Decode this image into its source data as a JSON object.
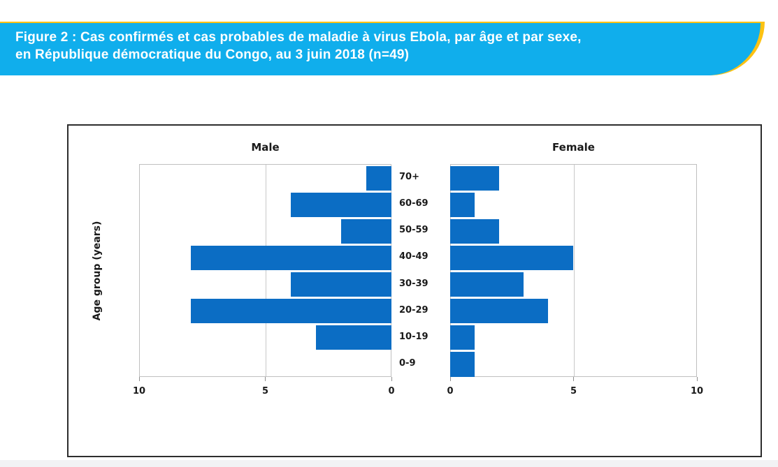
{
  "banner": {
    "title_line1": "Figure 2 : Cas confirmés et cas probables de maladie à virus Ebola, par âge et par sexe,",
    "title_line2": "en République démocratique du Congo, au 3 juin 2018 (n=49)",
    "bg_color": "#10aeec",
    "accent_color": "#fdc212",
    "text_color": "#ffffff"
  },
  "page": {
    "background": "#ffffff",
    "footer_strip_color": "#f2f2f4"
  },
  "chart_data": {
    "type": "bar",
    "orientation": "horizontal-pyramid",
    "title_left": "Male",
    "title_right": "Female",
    "ylabel": "Age group (years)",
    "categories": [
      "70+",
      "60-69",
      "50-59",
      "40-49",
      "30-39",
      "20-29",
      "10-19",
      "0-9"
    ],
    "series": [
      {
        "name": "Male",
        "values": [
          1,
          4,
          2,
          8,
          4,
          8,
          3,
          0
        ]
      },
      {
        "name": "Female",
        "values": [
          2,
          1,
          2,
          5,
          3,
          4,
          1,
          1
        ]
      }
    ],
    "xlim": [
      0,
      10
    ],
    "x_ticks_male": [
      10,
      5,
      0
    ],
    "x_ticks_female": [
      0,
      5,
      10
    ],
    "bar_color": "#0b6dc4",
    "grid": true,
    "gridline_values": [
      5
    ],
    "total_n": 49
  }
}
